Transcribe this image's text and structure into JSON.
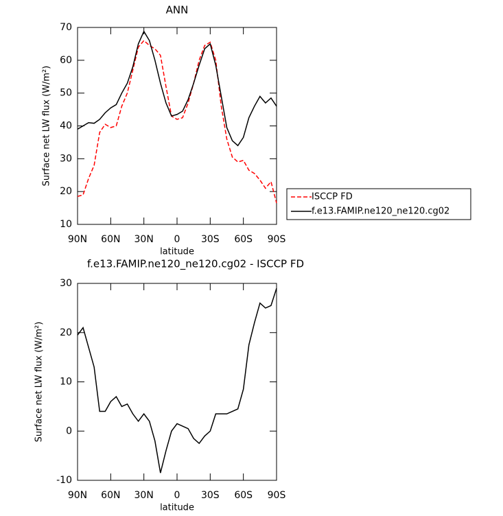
{
  "chart_data": [
    {
      "type": "line",
      "title": "ANN",
      "y_label": "Surface net LW flux (W/m²)",
      "x_label": "latitude",
      "x": [
        90,
        85,
        80,
        75,
        70,
        65,
        60,
        55,
        50,
        45,
        40,
        35,
        30,
        25,
        20,
        15,
        10,
        5,
        0,
        -5,
        -10,
        -15,
        -20,
        -25,
        -30,
        -35,
        -40,
        -45,
        -50,
        -55,
        -60,
        -65,
        -70,
        -75,
        -80,
        -85,
        -90
      ],
      "xlim": [
        90,
        -90
      ],
      "xticks": [
        {
          "value": 90,
          "label": "90N"
        },
        {
          "value": 60,
          "label": "60N"
        },
        {
          "value": 30,
          "label": "30N"
        },
        0,
        {
          "value": -30,
          "label": "30S"
        },
        {
          "value": -60,
          "label": "60S"
        },
        {
          "value": -90,
          "label": "90S"
        }
      ],
      "ylim": [
        10,
        70
      ],
      "yticks": [
        10,
        20,
        30,
        40,
        50,
        60,
        70
      ],
      "legend": "right",
      "series": [
        {
          "name": "ISCCP FD",
          "color": "#ff0000",
          "line_style": "dashed",
          "values": [
            18.5,
            19,
            24,
            28,
            38,
            40.5,
            39.5,
            40,
            46,
            50,
            57,
            64,
            66,
            64.5,
            63.5,
            61.5,
            52,
            43,
            42,
            42.5,
            47,
            53,
            60,
            64.5,
            65.5,
            60,
            46,
            36,
            30.5,
            29,
            29.5,
            26.5,
            25.5,
            23.5,
            21,
            23,
            16.5
          ]
        },
        {
          "name": "f.e13.FAMIP.ne120_ne120.cg02",
          "color": "#000000",
          "line_style": "solid",
          "values": [
            39,
            40,
            41,
            40.8,
            42,
            44,
            45.5,
            46.5,
            50,
            53,
            58,
            65,
            68.8,
            66,
            60,
            53,
            47,
            43,
            43.5,
            44.5,
            48,
            53,
            58.5,
            63.5,
            65,
            58.5,
            49,
            39.5,
            35.5,
            34,
            36.5,
            42.5,
            46,
            49,
            47,
            48.5,
            46
          ]
        }
      ]
    },
    {
      "type": "line",
      "title": "f.e13.FAMIP.ne120_ne120.cg02 - ISCCP FD",
      "y_label": "Surface net LW flux (W/m²)",
      "x_label": "latitude",
      "x": [
        90,
        85,
        80,
        75,
        70,
        65,
        60,
        55,
        50,
        45,
        40,
        35,
        30,
        25,
        20,
        15,
        10,
        5,
        0,
        -5,
        -10,
        -15,
        -20,
        -25,
        -30,
        -35,
        -40,
        -45,
        -50,
        -55,
        -60,
        -65,
        -70,
        -75,
        -80,
        -85,
        -90
      ],
      "xlim": [
        90,
        -90
      ],
      "xticks": [
        {
          "value": 90,
          "label": "90N"
        },
        {
          "value": 60,
          "label": "60N"
        },
        {
          "value": 30,
          "label": "30N"
        },
        0,
        {
          "value": -30,
          "label": "30S"
        },
        {
          "value": -60,
          "label": "60S"
        },
        {
          "value": -90,
          "label": "90S"
        }
      ],
      "ylim": [
        -10,
        30
      ],
      "yticks": [
        -10,
        0,
        10,
        20,
        30
      ],
      "color": "#000000",
      "line_style": "solid",
      "values": [
        19.5,
        21,
        17,
        13,
        4,
        4,
        6,
        7,
        5,
        5.5,
        3.5,
        2,
        3.5,
        2,
        -2,
        -8.5,
        -4,
        0,
        1.5,
        1,
        0.5,
        -1.5,
        -2.5,
        -1,
        0,
        3.5,
        3.5,
        3.5,
        4,
        4.5,
        8.5,
        17.5,
        22,
        26,
        25,
        25.5,
        29
      ]
    }
  ]
}
